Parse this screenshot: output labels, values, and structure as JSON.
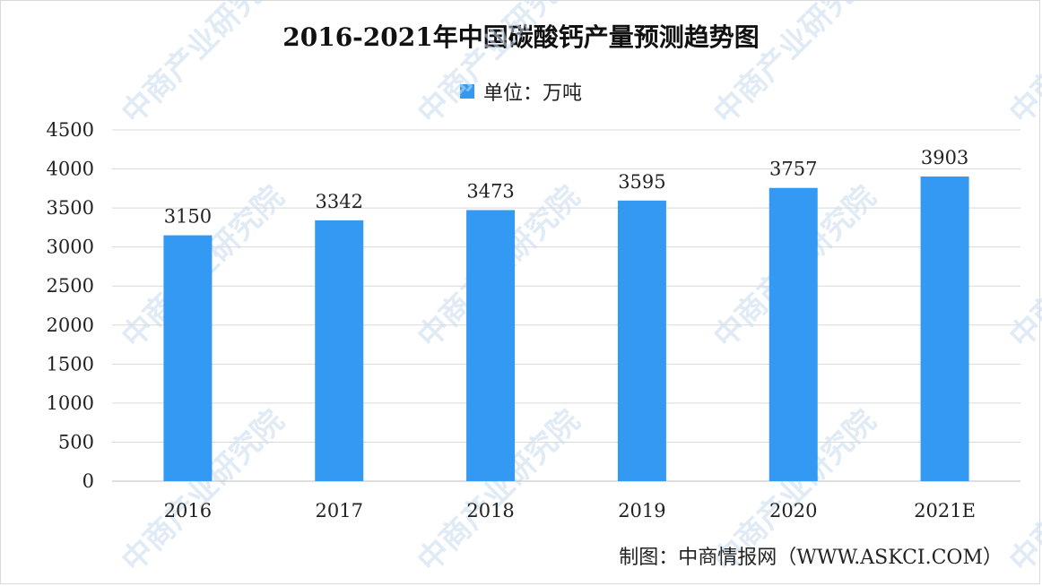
{
  "title": "2016-2021年中国碳酸钙产量预测趋势图",
  "legend_label": "单位：万吨",
  "source": "制图：中商情报网（WWW.ASKCI.COM）",
  "watermark_text": "中商产业研究院",
  "colors": {
    "bar": "#3399f3",
    "grid": "#d9d9d9",
    "axis": "#bfbfbf"
  },
  "chart_data": {
    "type": "bar",
    "categories": [
      "2016",
      "2017",
      "2018",
      "2019",
      "2020",
      "2021E"
    ],
    "values": [
      3150,
      3342,
      3473,
      3595,
      3757,
      3903
    ],
    "ylim": [
      0,
      4500
    ],
    "yticks": [
      0,
      500,
      1000,
      1500,
      2000,
      2500,
      3000,
      3500,
      4000,
      4500
    ],
    "grid": true,
    "legend_position": "top-center"
  }
}
